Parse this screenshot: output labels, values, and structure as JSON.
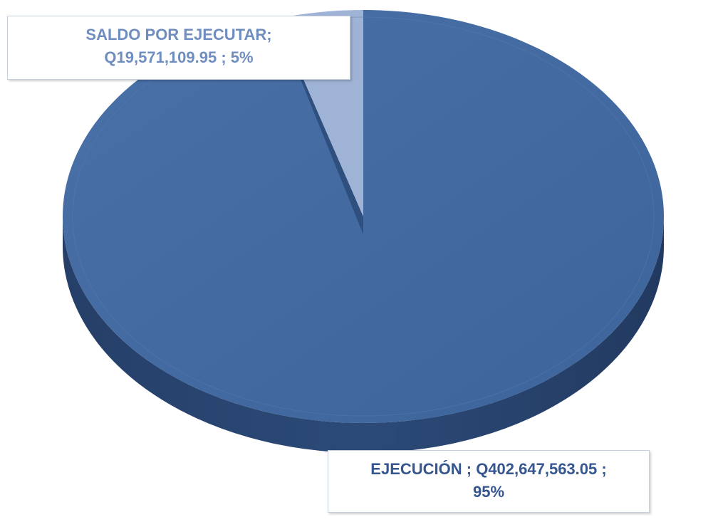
{
  "chart_data": {
    "type": "pie",
    "slices": [
      {
        "category": "EJECUCIÓN",
        "value": 402647563.05,
        "value_label": "Q402,647,563.05",
        "percent_label": "95%",
        "label_line1": "EJECUCIÓN ;  Q402,647,563.05 ;",
        "label_line2": "95%",
        "color": "#3e649c"
      },
      {
        "category": "SALDO POR EJECUTAR",
        "value": 19571109.95,
        "value_label": "Q19,571,109.95",
        "percent_label": "5%",
        "label_line1": "SALDO POR EJECUTAR;",
        "label_line2": "Q19,571,109.95 ; 5%",
        "color": "#9fb3d6"
      }
    ],
    "style": "3d-pie",
    "legend": "none"
  },
  "colors": {
    "main_top": "#3e649c",
    "main_side": "#2c4a78",
    "small_top": "#9fb3d6",
    "small_side": "#5f7fb0",
    "label_saldo_text": "#6f8ebf",
    "label_ejecucion_text": "#35568e"
  }
}
